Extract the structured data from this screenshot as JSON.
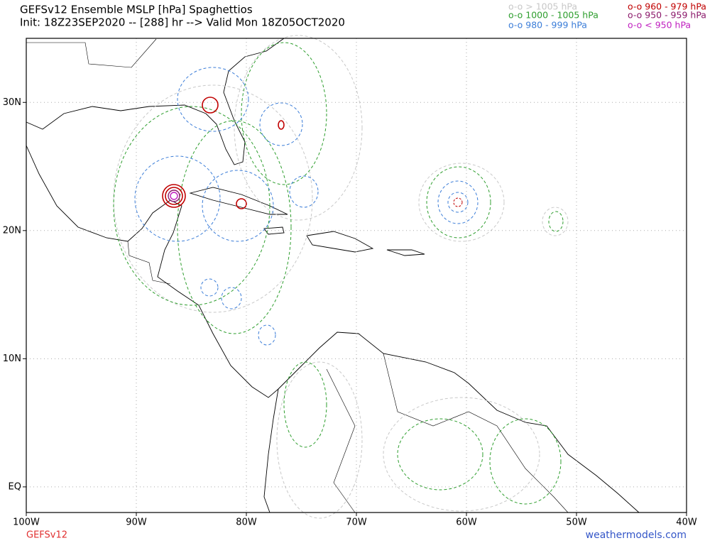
{
  "header": {
    "title": "GEFSv12 Ensemble MSLP [hPa] Spaghettios",
    "subtitle": "Init: 18Z23SEP2020 -- [288] hr --> Valid Mon 18Z05OCT2020"
  },
  "legend": [
    {
      "label": "o-o > 1005 hPa",
      "color": "#c8c8c8"
    },
    {
      "label": "o-o 1000 - 1005 hPa",
      "color": "#2e9e2e"
    },
    {
      "label": "o-o 980 - 999 hPa",
      "color": "#3b7dd8"
    },
    {
      "label": "o-o 960 - 979 hPa",
      "color": "#c00000"
    },
    {
      "label": "o-o 950 - 959 hPa",
      "color": "#8b1a6b"
    },
    {
      "label": "o-o < 950 hPa",
      "color": "#c020c0"
    }
  ],
  "map": {
    "xlim": [
      -100,
      -40
    ],
    "ylim": [
      -2,
      35
    ],
    "grid": true,
    "xticks": [
      {
        "value": -100,
        "label": "100W"
      },
      {
        "value": -90,
        "label": "90W"
      },
      {
        "value": -80,
        "label": "80W"
      },
      {
        "value": -70,
        "label": "70W"
      },
      {
        "value": -60,
        "label": "60W"
      },
      {
        "value": -50,
        "label": "50W"
      },
      {
        "value": -40,
        "label": "40W"
      }
    ],
    "yticks": [
      {
        "value": 0,
        "label": "EQ"
      },
      {
        "value": 10,
        "label": "10N"
      },
      {
        "value": 20,
        "label": "20N"
      },
      {
        "value": 30,
        "label": "30N"
      }
    ]
  },
  "footer": {
    "model": "GEFSv12",
    "site": "weathermodels.com"
  }
}
